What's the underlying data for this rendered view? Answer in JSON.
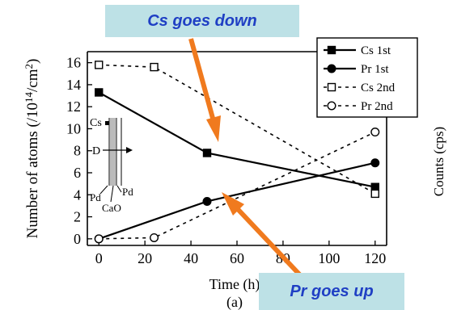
{
  "chart_data": {
    "type": "line",
    "xlabel": "Time (h)",
    "ylabel": "Number of atoms (/10^14/cm^2)",
    "ylabel_right": "Counts (cps)",
    "panel_label": "(a)",
    "xlim": [
      -5,
      125
    ],
    "ylim": [
      -0.6,
      17
    ],
    "xticks": [
      0,
      20,
      40,
      60,
      80,
      100,
      120
    ],
    "yticks": [
      0,
      2,
      4,
      6,
      8,
      10,
      12,
      14,
      16
    ],
    "series": [
      {
        "name": "Cs 1st",
        "style": "solid",
        "marker": "filled-square",
        "x": [
          0,
          47,
          120
        ],
        "y": [
          13.3,
          7.8,
          4.7
        ]
      },
      {
        "name": "Pr 1st",
        "style": "solid",
        "marker": "filled-circle",
        "x": [
          0,
          47,
          120
        ],
        "y": [
          0,
          3.4,
          6.9
        ]
      },
      {
        "name": "Cs 2nd",
        "style": "dashed",
        "marker": "open-square",
        "x": [
          0,
          24,
          120
        ],
        "y": [
          15.8,
          15.6,
          4.1
        ]
      },
      {
        "name": "Pr 2nd",
        "style": "dashed",
        "marker": "open-circle",
        "x": [
          0,
          24,
          120
        ],
        "y": [
          0,
          0.1,
          9.7
        ]
      }
    ],
    "legend": {
      "placement": "top-right"
    },
    "inset": {
      "labels": {
        "cs": "Cs",
        "d": "D",
        "pd_left": "Pd",
        "pd_right": "Pd",
        "cao": "CaO"
      }
    }
  },
  "annotations": {
    "cs_down": "Cs goes down",
    "pr_up": "Pr goes up"
  },
  "colors": {
    "callout_bg": "#bde1e6",
    "callout_text": "#1f3fc4",
    "arrow": "#f07a1e"
  }
}
